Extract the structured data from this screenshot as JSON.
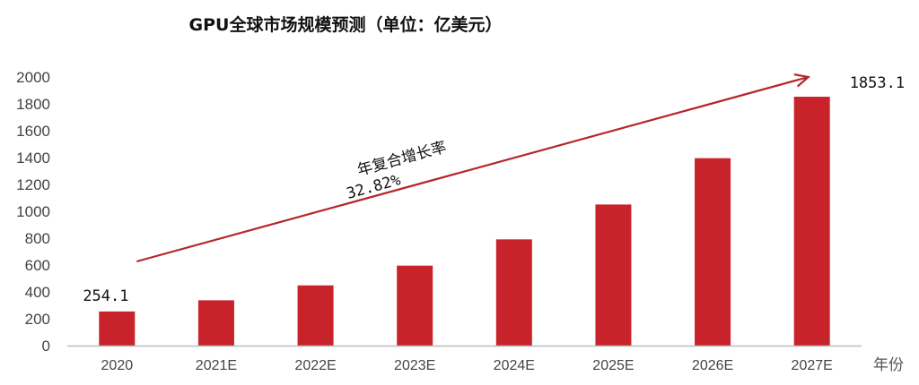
{
  "chart_data": {
    "type": "bar",
    "title": "GPU全球市场规模预测（单位：亿美元）",
    "categories": [
      "2020",
      "2021E",
      "2022E",
      "2023E",
      "2024E",
      "2025E",
      "2026E",
      "2027E"
    ],
    "values": [
      254.1,
      337.5,
      448.3,
      595.5,
      791.0,
      1050.6,
      1395.5,
      1853.1
    ],
    "data_labels": {
      "first": "254.1",
      "last": "1853.1"
    },
    "ylim": [
      0,
      2000
    ],
    "yticks": [
      0,
      200,
      400,
      600,
      800,
      1000,
      1200,
      1400,
      1600,
      1800,
      2000
    ],
    "xlabel": "年份",
    "ylabel": "",
    "bar_color": "#c8232a",
    "trend_color": "#b5262c",
    "annotation": {
      "text": "年复合增长率",
      "value": "32.82%"
    },
    "grid": false,
    "legend": "none"
  }
}
